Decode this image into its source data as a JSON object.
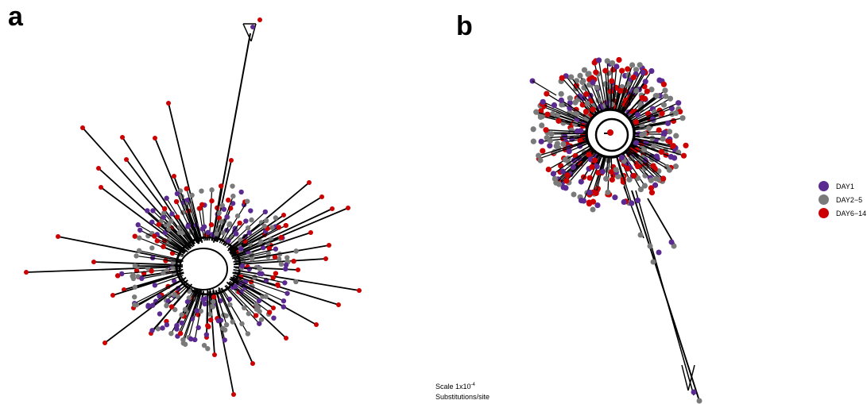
{
  "panels": [
    {
      "label": "a"
    },
    {
      "label": "b"
    }
  ],
  "legend": [
    {
      "label": "DAY1",
      "color": "#5b2a90"
    },
    {
      "label": "DAY2−5",
      "color": "#7a7a7a"
    },
    {
      "label": "DAY6−14",
      "color": "#cc0000"
    }
  ],
  "scale": {
    "prefix": "Scale 1x10",
    "exponent": "-4",
    "unit": "Substitutions/site"
  }
}
